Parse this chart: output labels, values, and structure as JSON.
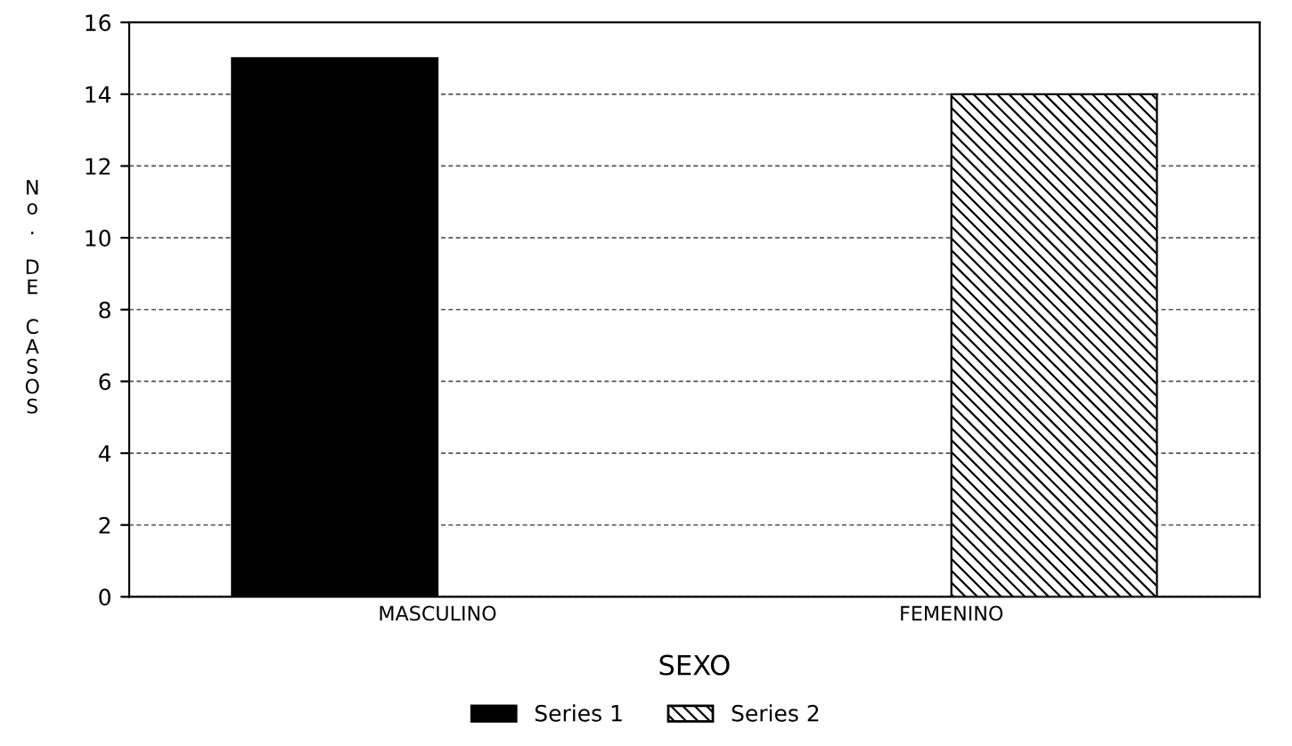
{
  "chart_data": {
    "type": "bar",
    "xlabel": "SEXO",
    "ylabel": "No. DE CASOS",
    "categories": [
      "MASCULINO",
      "FEMENINO"
    ],
    "series": [
      {
        "name": "Series 1",
        "color": "#000000",
        "values": [
          15,
          null
        ]
      },
      {
        "name": "Series 2",
        "color": "#000000",
        "values": [
          null,
          14
        ]
      }
    ],
    "ylim": [
      0,
      16
    ],
    "yticks": [
      0,
      2,
      4,
      6,
      8,
      10,
      12,
      14,
      16
    ],
    "grid": "y",
    "legend": "bottom"
  }
}
